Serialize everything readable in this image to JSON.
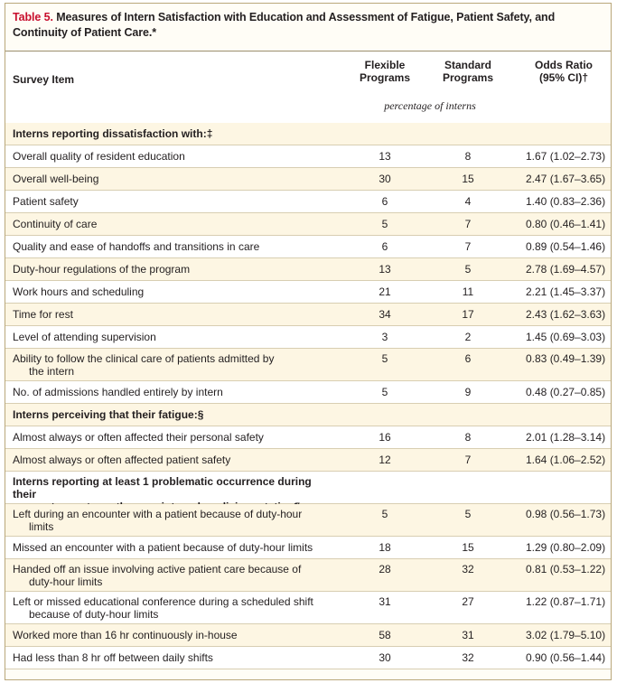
{
  "title": {
    "number": "Table 5.",
    "text": " Measures of Intern Satisfaction with Education and Assessment of Fatigue, Patient Safety, and Continuity of Patient Care.*"
  },
  "header": {
    "item": "Survey Item",
    "flexible": [
      "Flexible",
      "Programs"
    ],
    "standard": [
      "Standard",
      "Programs"
    ],
    "odds": [
      "Odds Ratio",
      "(95% CI)†"
    ],
    "unit": "percentage of interns"
  },
  "rows": [
    {
      "type": "section",
      "lines": [
        "Interns reporting dissatisfaction with:‡"
      ]
    },
    {
      "type": "data",
      "lines": [
        "Overall quality of resident education"
      ],
      "flexible": "13",
      "standard": "8",
      "or": "1.67 (1.02–2.73)"
    },
    {
      "type": "data",
      "lines": [
        "Overall well-being"
      ],
      "flexible": "30",
      "standard": "15",
      "or": "2.47 (1.67–3.65)"
    },
    {
      "type": "data",
      "lines": [
        "Patient safety"
      ],
      "flexible": "6",
      "standard": "4",
      "or": "1.40 (0.83–2.36)"
    },
    {
      "type": "data",
      "lines": [
        "Continuity of care"
      ],
      "flexible": "5",
      "standard": "7",
      "or": "0.80 (0.46–1.41)"
    },
    {
      "type": "data",
      "lines": [
        "Quality and ease of handoffs and transitions in care"
      ],
      "flexible": "6",
      "standard": "7",
      "or": "0.89 (0.54–1.46)"
    },
    {
      "type": "data",
      "lines": [
        "Duty-hour regulations of the program"
      ],
      "flexible": "13",
      "standard": "5",
      "or": "2.78 (1.69–4.57)"
    },
    {
      "type": "data",
      "lines": [
        "Work hours and scheduling"
      ],
      "flexible": "21",
      "standard": "11",
      "or": "2.21 (1.45–3.37)"
    },
    {
      "type": "data",
      "lines": [
        "Time for rest"
      ],
      "flexible": "34",
      "standard": "17",
      "or": "2.43 (1.62–3.63)"
    },
    {
      "type": "data",
      "lines": [
        "Level of attending supervision"
      ],
      "flexible": "3",
      "standard": "2",
      "or": "1.45 (0.69–3.03)"
    },
    {
      "type": "data",
      "lines": [
        "Ability to follow the clinical care of patients admitted by",
        "the intern"
      ],
      "flexible": "5",
      "standard": "6",
      "or": "0.83 (0.49–1.39)"
    },
    {
      "type": "data",
      "lines": [
        "No. of admissions handled entirely by intern"
      ],
      "flexible": "5",
      "standard": "9",
      "or": "0.48 (0.27–0.85)"
    },
    {
      "type": "section",
      "lines": [
        "Interns perceiving that their fatigue:§"
      ]
    },
    {
      "type": "data",
      "lines": [
        "Almost always or often affected their personal safety"
      ],
      "flexible": "16",
      "standard": "8",
      "or": "2.01 (1.28–3.14)"
    },
    {
      "type": "data",
      "lines": [
        "Almost always or often affected patient safety"
      ],
      "flexible": "12",
      "standard": "7",
      "or": "1.64 (1.06–2.52)"
    },
    {
      "type": "section",
      "lines": [
        "Interns reporting at least 1 problematic occurrence during their",
        "most recent month on an internal medicine rotation¶"
      ]
    },
    {
      "type": "data",
      "lines": [
        "Left during an encounter with a patient because of duty-hour",
        "limits"
      ],
      "flexible": "5",
      "standard": "5",
      "or": "0.98 (0.56–1.73)"
    },
    {
      "type": "data",
      "lines": [
        "Missed an encounter with a patient because of duty-hour limits"
      ],
      "flexible": "18",
      "standard": "15",
      "or": "1.29 (0.80–2.09)"
    },
    {
      "type": "data",
      "lines": [
        "Handed off an issue involving active patient care because of",
        "duty-hour limits"
      ],
      "flexible": "28",
      "standard": "32",
      "or": "0.81 (0.53–1.22)"
    },
    {
      "type": "data",
      "lines": [
        "Left or missed educational conference during a scheduled shift",
        "because of duty-hour limits"
      ],
      "flexible": "31",
      "standard": "27",
      "or": "1.22 (0.87–1.71)"
    },
    {
      "type": "data",
      "lines": [
        "Worked more than 16 hr continuously in-house"
      ],
      "flexible": "58",
      "standard": "31",
      "or": "3.02 (1.79–5.10)"
    },
    {
      "type": "data",
      "lines": [
        "Had less than 8 hr off between daily shifts"
      ],
      "flexible": "30",
      "standard": "32",
      "or": "0.90 (0.56–1.44)"
    }
  ]
}
